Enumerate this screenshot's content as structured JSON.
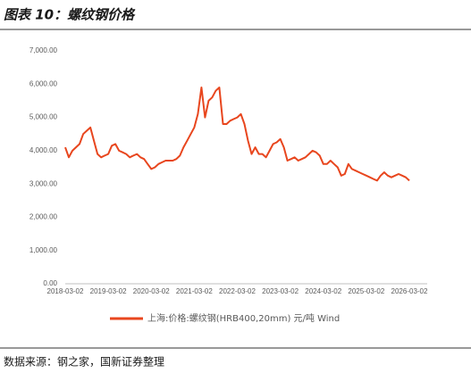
{
  "header": {
    "title": "图表 10：螺纹钢价格"
  },
  "chart_data": {
    "type": "line",
    "categories": [
      "2018-03-02",
      null,
      null,
      null,
      null,
      null,
      null,
      null,
      null,
      null,
      null,
      null,
      "2019-03-02",
      null,
      null,
      null,
      null,
      null,
      null,
      null,
      null,
      null,
      null,
      null,
      "2020-03-02",
      null,
      null,
      null,
      null,
      null,
      null,
      null,
      null,
      null,
      null,
      null,
      "2021-03-02",
      null,
      null,
      null,
      null,
      null,
      null,
      null,
      null,
      null,
      null,
      null,
      "2022-03-02",
      null,
      null,
      null,
      null,
      null,
      null,
      null,
      null,
      null,
      null,
      null,
      "2023-03-02",
      null,
      null,
      null,
      null,
      null,
      null,
      null,
      null,
      null,
      null,
      null,
      "2024-03-02",
      null,
      null,
      null,
      null,
      null,
      null,
      null,
      null,
      null,
      null,
      null,
      "2025-03-02",
      null,
      null,
      null,
      null,
      null,
      null,
      null,
      null,
      null,
      null,
      null,
      "2026-03-02"
    ],
    "series": [
      {
        "name": "上海:价格:螺纹钢(HRB400,20mm) 元/吨 Wind",
        "color": "#e8461e",
        "values": [
          4100,
          3800,
          4000,
          4100,
          4200,
          4500,
          4600,
          4700,
          4300,
          3900,
          3800,
          3850,
          3900,
          4150,
          4200,
          4000,
          3950,
          3900,
          3800,
          3850,
          3900,
          3800,
          3750,
          3600,
          3450,
          3500,
          3600,
          3650,
          3700,
          3700,
          3700,
          3750,
          3850,
          4100,
          4300,
          4500,
          4700,
          5100,
          5900,
          5000,
          5500,
          5600,
          5800,
          5900,
          4800,
          4800,
          4900,
          4950,
          5000,
          5100,
          4800,
          4300,
          3900,
          4100,
          3900,
          3900,
          3800,
          4000,
          4200,
          4250,
          4350,
          4100,
          3700,
          3750,
          3800,
          3700,
          3750,
          3800,
          3900,
          4000,
          3950,
          3850,
          3600,
          3600,
          3700,
          3600,
          3500,
          3250,
          3300,
          3600,
          3450,
          3400,
          3350,
          3300,
          3250,
          3200,
          3150,
          3100,
          3250,
          3350,
          3250,
          3200,
          3250,
          3300,
          3250,
          3200,
          3100
        ]
      }
    ],
    "ylim": [
      0,
      7000
    ],
    "yticks": [
      {
        "value": 0,
        "label": "0.00"
      },
      {
        "value": 1000,
        "label": "1,000.00"
      },
      {
        "value": 2000,
        "label": "2,000.00"
      },
      {
        "value": 3000,
        "label": "3,000.00"
      },
      {
        "value": 4000,
        "label": "4,000.00"
      },
      {
        "value": 5000,
        "label": "5,000.00"
      },
      {
        "value": 6000,
        "label": "6,000.00"
      },
      {
        "value": 7000,
        "label": "7,000.00"
      }
    ],
    "grid": false
  },
  "footer": {
    "source": "数据来源：钢之家，国新证券整理"
  }
}
